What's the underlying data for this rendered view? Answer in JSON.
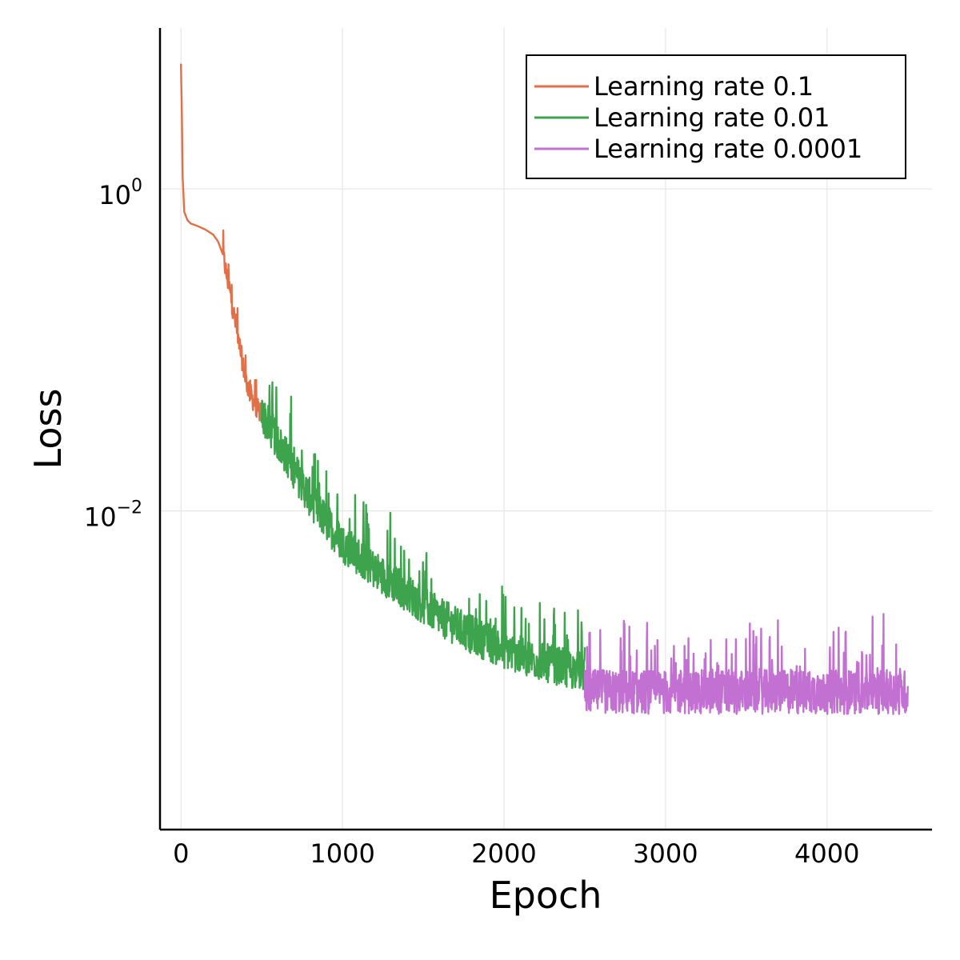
{
  "chart_data": {
    "type": "line",
    "title": "",
    "xlabel": "Epoch",
    "ylabel": "Loss",
    "xlim": [
      -130,
      4650
    ],
    "ylim_log10": [
      -3.98,
      1.0
    ],
    "y_scale": "log10",
    "grid": true,
    "legend_position": "top-right",
    "x_ticks": [
      {
        "value": 0,
        "label": "0"
      },
      {
        "value": 1000,
        "label": "1000"
      },
      {
        "value": 2000,
        "label": "2000"
      },
      {
        "value": 3000,
        "label": "3000"
      },
      {
        "value": 4000,
        "label": "4000"
      }
    ],
    "y_ticks": [
      {
        "log10": 0,
        "base": "10",
        "exp": "0"
      },
      {
        "log10": -2,
        "base": "10",
        "exp": "−2"
      }
    ],
    "series": [
      {
        "name": "Learning rate 0.1",
        "color": "#e26f46",
        "x_range": [
          0,
          500
        ],
        "points": [
          [
            0,
            6.0
          ],
          [
            5,
            3.0
          ],
          [
            10,
            1.2
          ],
          [
            20,
            0.72
          ],
          [
            40,
            0.64
          ],
          [
            60,
            0.61
          ],
          [
            100,
            0.59
          ],
          [
            150,
            0.56
          ],
          [
            200,
            0.52
          ],
          [
            230,
            0.47
          ],
          [
            260,
            0.39
          ],
          [
            280,
            0.3
          ],
          [
            300,
            0.24
          ],
          [
            330,
            0.16
          ],
          [
            360,
            0.11
          ],
          [
            400,
            0.065
          ],
          [
            440,
            0.05
          ],
          [
            480,
            0.042
          ],
          [
            500,
            0.04
          ]
        ],
        "noise_log10_amplitude": 0.12,
        "noise_starts_at_x": 260
      },
      {
        "name": "Learning rate 0.01",
        "color": "#3da44d",
        "x_range": [
          500,
          2500
        ],
        "points": [
          [
            500,
            0.04
          ],
          [
            600,
            0.027
          ],
          [
            700,
            0.018
          ],
          [
            800,
            0.012
          ],
          [
            900,
            0.0085
          ],
          [
            1000,
            0.0063
          ],
          [
            1200,
            0.0043
          ],
          [
            1400,
            0.0031
          ],
          [
            1600,
            0.0022
          ],
          [
            1800,
            0.0017
          ],
          [
            2000,
            0.00138
          ],
          [
            2200,
            0.00118
          ],
          [
            2400,
            0.00104
          ],
          [
            2500,
            0.001
          ]
        ],
        "noise_log10_amplitude": 0.22
      },
      {
        "name": "Learning rate 0.0001",
        "color": "#c271d2",
        "x_range": [
          2500,
          4500
        ],
        "points": [
          [
            2500,
            0.00075
          ],
          [
            4500,
            0.00075
          ]
        ],
        "noise_log10_amplitude": 0.25
      }
    ]
  }
}
